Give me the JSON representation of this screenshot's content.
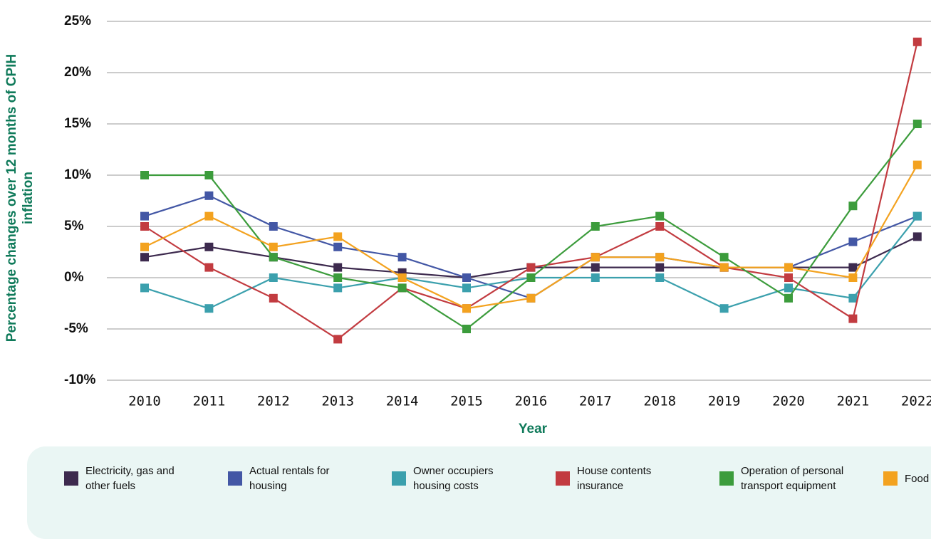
{
  "chart_data": {
    "type": "line",
    "xlabel": "Year",
    "ylabel": "Percentage changes over 12 months of CPIH inflation",
    "categories": [
      "2010",
      "2011",
      "2012",
      "2013",
      "2014",
      "2015",
      "2016",
      "2017",
      "2018",
      "2019",
      "2020",
      "2021",
      "2022"
    ],
    "ylim": [
      -10,
      25
    ],
    "yticks": [
      {
        "value": -10,
        "label": "-10%"
      },
      {
        "value": -5,
        "label": "-5%"
      },
      {
        "value": 0,
        "label": "0%"
      },
      {
        "value": 5,
        "label": "5%"
      },
      {
        "value": 10,
        "label": "10%"
      },
      {
        "value": 15,
        "label": "15%"
      },
      {
        "value": 20,
        "label": "20%"
      },
      {
        "value": 25,
        "label": "25%"
      }
    ],
    "grid": true,
    "legend": "bottom",
    "series": [
      {
        "name": "Electricity, gas and other fuels",
        "color": "#3d2a4e",
        "values": [
          2,
          3,
          2,
          1,
          0.5,
          0,
          1,
          1,
          1,
          1,
          1,
          1,
          4
        ]
      },
      {
        "name": "Actual rentals for housing",
        "color": "#4357a5",
        "values": [
          6,
          8,
          5,
          3,
          2,
          0,
          -2,
          2,
          2,
          1,
          1,
          3.5,
          6
        ]
      },
      {
        "name": "Owner occupiers housing costs",
        "color": "#3ba0ad",
        "values": [
          -1,
          -3,
          0,
          -1,
          0,
          -1,
          0,
          0,
          0,
          -3,
          -1,
          -2,
          6
        ]
      },
      {
        "name": "House contents insurance",
        "color": "#c23b40",
        "values": [
          5,
          1,
          -2,
          -6,
          -1,
          -3,
          1,
          2,
          5,
          1,
          0,
          -4,
          23
        ]
      },
      {
        "name": "Operation of personal transport equipment",
        "color": "#3c9c3c",
        "values": [
          10,
          10,
          2,
          0,
          -1,
          -5,
          0,
          5,
          6,
          2,
          -2,
          7,
          15
        ]
      },
      {
        "name": "Food",
        "color": "#f3a21f",
        "values": [
          3,
          6,
          3,
          4,
          0,
          -3,
          -2,
          2,
          2,
          1,
          1,
          0,
          11
        ]
      }
    ]
  }
}
